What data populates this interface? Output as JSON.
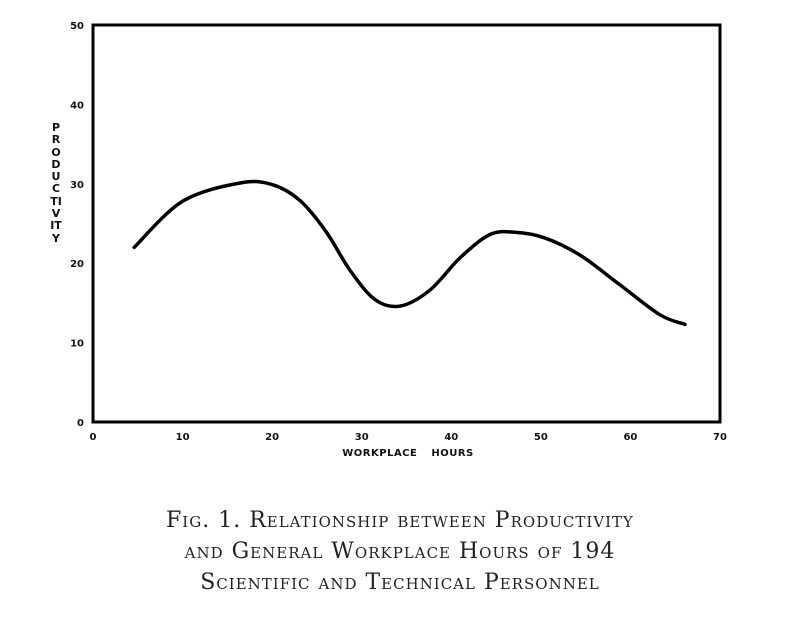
{
  "chart_data": {
    "type": "line",
    "xlabel": "WORKPLACE HOURS",
    "ylabel": "PRODUCTIVITY",
    "xlim": [
      0,
      70
    ],
    "ylim": [
      0,
      50
    ],
    "x_ticks": [
      "0",
      "10",
      "20",
      "30",
      "40",
      "50",
      "60",
      "70"
    ],
    "y_ticks": [
      "0",
      "10",
      "20",
      "30",
      "40",
      "50"
    ],
    "grid": false,
    "series": [
      {
        "x": [
          4.6,
          10,
          16.4,
          20,
          23.1,
          26,
          28.7,
          31.5,
          34.3,
          37.6,
          41,
          44.3,
          47.1,
          50.4,
          54.4,
          58.8,
          63.3,
          66.1
        ],
        "y": [
          22.0,
          27.8,
          30.1,
          29.9,
          27.9,
          24.0,
          19.1,
          15.4,
          14.6,
          16.6,
          20.7,
          23.6,
          23.9,
          23.2,
          21.0,
          17.3,
          13.5,
          12.3
        ]
      }
    ],
    "caption": [
      "Fig. 1.  Relationship between Productivity",
      "and General Workplace Hours of 194",
      "Scientific and Technical Personnel"
    ]
  }
}
